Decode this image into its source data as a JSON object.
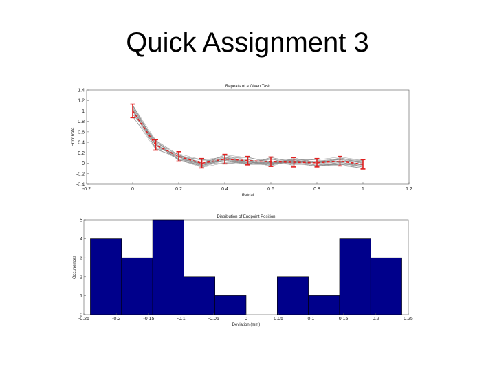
{
  "slide": {
    "title": "Quick Assignment 3"
  },
  "chart_data": [
    {
      "type": "line",
      "title": "Repeats of a Given Task",
      "xlabel": "Retrial",
      "ylabel": "Error Rate",
      "xlim": [
        -0.2,
        1.2
      ],
      "ylim": [
        -0.4,
        1.4
      ],
      "xticks": [
        -0.2,
        0,
        0.2,
        0.4,
        0.6,
        0.8,
        1,
        1.2
      ],
      "yticks": [
        -0.4,
        -0.2,
        0,
        0.2,
        0.4,
        0.6,
        0.8,
        1,
        1.2,
        1.4
      ],
      "grid": false,
      "mean_series": {
        "x": [
          0,
          0.1,
          0.2,
          0.3,
          0.4,
          0.5,
          0.6,
          0.7,
          0.8,
          0.9,
          1.0
        ],
        "y": [
          1.0,
          0.35,
          0.13,
          0.0,
          0.08,
          0.05,
          0.03,
          0.02,
          0.01,
          0.04,
          -0.02
        ],
        "err": [
          0.13,
          0.1,
          0.09,
          0.09,
          0.09,
          0.08,
          0.09,
          0.09,
          0.08,
          0.09,
          0.09
        ],
        "color": "#e02020"
      },
      "trial_color": "#8a8a8a"
    },
    {
      "type": "bar",
      "title": "Distribution of Endpoint Position",
      "xlabel": "Deviation (mm)",
      "ylabel": "Occurrences",
      "xlim": [
        -0.25,
        0.25
      ],
      "ylim": [
        0,
        5
      ],
      "xticks": [
        -0.25,
        -0.2,
        -0.15,
        -0.1,
        -0.05,
        0,
        0.05,
        0.1,
        0.15,
        0.2,
        0.25
      ],
      "yticks": [
        0,
        1,
        2,
        3,
        4,
        5
      ],
      "bin_edges": [
        -0.25,
        -0.2,
        -0.15,
        -0.1,
        -0.05,
        0,
        0.05,
        0.1,
        0.15,
        0.2,
        0.25
      ],
      "bins_plot_start": -0.24,
      "bins_plot_end": 0.24,
      "values": [
        4,
        3,
        5,
        2,
        1,
        0,
        2,
        1,
        4,
        3
      ],
      "bar_color": "#00008b"
    }
  ]
}
